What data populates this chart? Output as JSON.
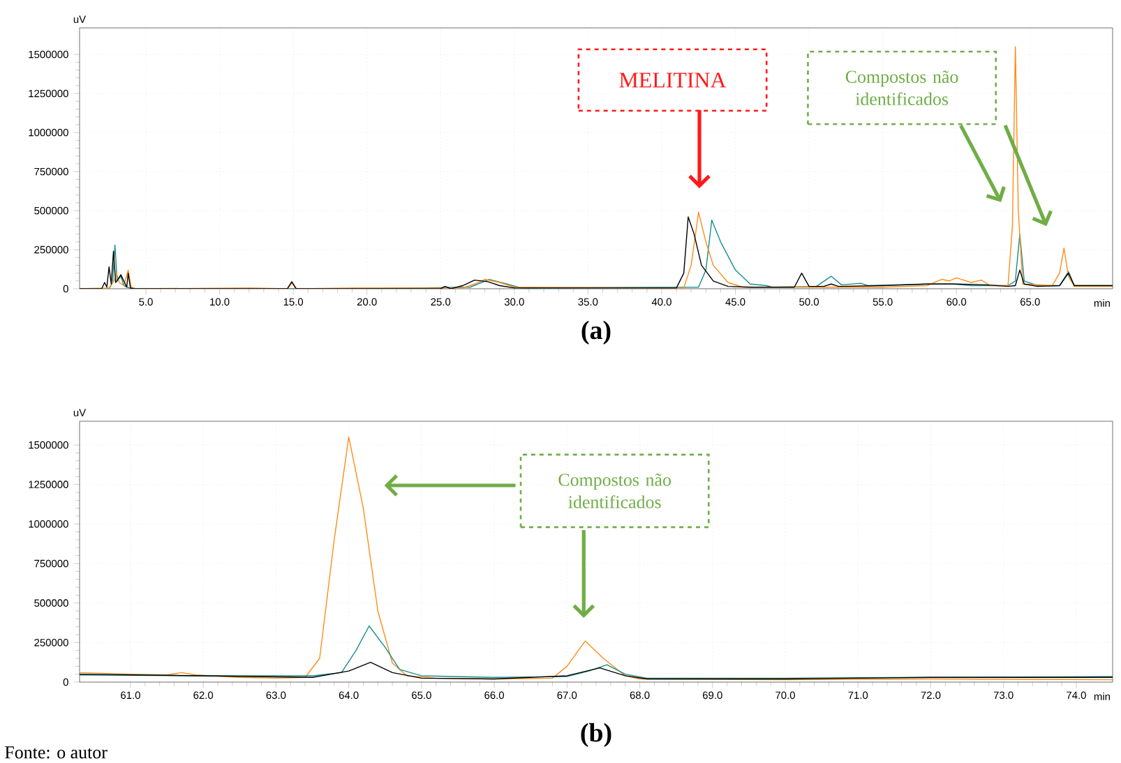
{
  "chart_data": [
    {
      "type": "line",
      "title": "(a)",
      "xlabel": "min",
      "ylabel": "uV",
      "grid": true,
      "xlim": [
        0.5,
        70.6
      ],
      "ylim": [
        0,
        1670000
      ],
      "xticks": [
        {
          "value": 5,
          "label": "5.0"
        },
        {
          "value": 10,
          "label": "10.0"
        },
        {
          "value": 15,
          "label": "15.0"
        },
        {
          "value": 20,
          "label": "20.0"
        },
        {
          "value": 25,
          "label": "25.0"
        },
        {
          "value": 30,
          "label": "30.0"
        },
        {
          "value": 35,
          "label": "35.0"
        },
        {
          "value": 40,
          "label": "40.0"
        },
        {
          "value": 45,
          "label": "45.0"
        },
        {
          "value": 50,
          "label": "50.0"
        },
        {
          "value": 55,
          "label": "55.0"
        },
        {
          "value": 60,
          "label": "60.0"
        },
        {
          "value": 65,
          "label": "65.0"
        }
      ],
      "yticks": [
        0,
        250000,
        500000,
        750000,
        1000000,
        1250000,
        1500000
      ],
      "annotations": [
        "MELITINA",
        "Compostos não identificados"
      ],
      "series": [
        {
          "color": "#1a8c8c",
          "x": [
            0.5,
            2.5,
            2.75,
            2.9,
            3.05,
            3.3,
            3.5,
            4.0,
            20,
            27.0,
            28.3,
            29.5,
            30.5,
            42.5,
            43.0,
            43.4,
            44.0,
            45.0,
            46.0,
            47.1,
            47.5,
            50.5,
            51.5,
            52.2,
            53.5,
            54.0,
            58.0,
            59.8,
            61.0,
            63.5,
            64.0,
            64.3,
            64.6,
            65.5,
            67.0,
            67.6,
            68.0,
            70.6
          ],
          "values": [
            0,
            0,
            40000,
            280000,
            50000,
            80000,
            20000,
            0,
            0,
            10000,
            60000,
            30000,
            5000,
            10000,
            120000,
            440000,
            300000,
            120000,
            30000,
            20000,
            10000,
            15000,
            80000,
            25000,
            35000,
            20000,
            30000,
            30000,
            20000,
            20000,
            50000,
            350000,
            50000,
            20000,
            20000,
            110000,
            20000,
            20000
          ]
        },
        {
          "color": "#ff8c1a",
          "x": [
            0.5,
            2.5,
            2.9,
            3.0,
            3.2,
            3.5,
            3.8,
            4.0,
            4.3,
            12,
            14.6,
            14.9,
            15.2,
            20,
            26.5,
            27.3,
            28.0,
            29.0,
            30.0,
            41.5,
            42.0,
            42.5,
            43.0,
            43.5,
            44.5,
            45.5,
            50,
            55,
            58.0,
            59.0,
            59.5,
            60.0,
            61.0,
            61.7,
            62.3,
            63.5,
            63.8,
            64.0,
            64.2,
            64.5,
            66.5,
            67.0,
            67.3,
            67.6,
            68.0,
            70.6
          ],
          "values": [
            0,
            5000,
            60000,
            100000,
            40000,
            20000,
            120000,
            10000,
            0,
            5000,
            0,
            35000,
            0,
            5000,
            5000,
            30000,
            60000,
            40000,
            10000,
            5000,
            150000,
            490000,
            300000,
            150000,
            40000,
            10000,
            10000,
            10000,
            20000,
            60000,
            50000,
            70000,
            40000,
            55000,
            20000,
            20000,
            400000,
            1550000,
            500000,
            30000,
            20000,
            100000,
            260000,
            80000,
            15000,
            15000
          ]
        },
        {
          "color": "#000000",
          "x": [
            0.5,
            2.0,
            2.2,
            2.35,
            2.5,
            2.65,
            2.8,
            2.95,
            3.1,
            3.3,
            3.5,
            3.7,
            3.8,
            3.95,
            4.2,
            14.6,
            14.9,
            15.2,
            25.0,
            25.3,
            25.7,
            26.5,
            27.3,
            28.2,
            29.0,
            30.0,
            41.0,
            41.5,
            41.8,
            42.2,
            42.7,
            43.5,
            44.5,
            46,
            49.0,
            49.5,
            50.0,
            51.0,
            51.5,
            52.0,
            55.0,
            58.0,
            60.0,
            62.0,
            63.5,
            64.0,
            64.3,
            64.6,
            65.5,
            67.0,
            67.6,
            68.0,
            70.6
          ],
          "values": [
            0,
            0,
            40000,
            10000,
            140000,
            30000,
            240000,
            40000,
            60000,
            90000,
            50000,
            10000,
            100000,
            5000,
            0,
            0,
            45000,
            0,
            0,
            15000,
            0,
            20000,
            55000,
            45000,
            20000,
            5000,
            5000,
            100000,
            460000,
            350000,
            150000,
            50000,
            15000,
            10000,
            10000,
            100000,
            15000,
            15000,
            30000,
            15000,
            20000,
            30000,
            30000,
            25000,
            15000,
            20000,
            120000,
            30000,
            15000,
            20000,
            100000,
            20000,
            20000
          ]
        }
      ]
    },
    {
      "type": "line",
      "title": "(b)",
      "xlabel": "min",
      "ylabel": "uV",
      "grid": true,
      "xlim": [
        60.3,
        74.5
      ],
      "ylim": [
        0,
        1650000
      ],
      "xticks": [
        {
          "value": 61,
          "label": "61.0"
        },
        {
          "value": 62,
          "label": "62.0"
        },
        {
          "value": 63,
          "label": "63.0"
        },
        {
          "value": 64,
          "label": "64.0"
        },
        {
          "value": 65,
          "label": "65.0"
        },
        {
          "value": 66,
          "label": "66.0"
        },
        {
          "value": 67,
          "label": "67.0"
        },
        {
          "value": 68,
          "label": "68.0"
        },
        {
          "value": 69,
          "label": "69.0"
        },
        {
          "value": 70,
          "label": "70.0"
        },
        {
          "value": 71,
          "label": "71.0"
        },
        {
          "value": 72,
          "label": "72.0"
        },
        {
          "value": 73,
          "label": "73.0"
        },
        {
          "value": 74,
          "label": "74.0"
        }
      ],
      "yticks": [
        0,
        250000,
        500000,
        750000,
        1000000,
        1250000,
        1500000
      ],
      "annotations": [
        "Compostos não identificados",
        "Fonte: o autor"
      ],
      "series": [
        {
          "color": "#ff8c1a",
          "x": [
            60.3,
            61.0,
            61.5,
            61.7,
            61.9,
            62.5,
            63.0,
            63.4,
            63.6,
            63.8,
            64.0,
            64.2,
            64.4,
            64.6,
            64.8,
            65.2,
            66.0,
            66.8,
            67.0,
            67.25,
            67.5,
            67.8,
            68.0,
            70.0,
            72.0,
            74.5
          ],
          "values": [
            60000,
            50000,
            45000,
            60000,
            45000,
            30000,
            25000,
            30000,
            150000,
            900000,
            1550000,
            1100000,
            450000,
            120000,
            40000,
            25000,
            20000,
            25000,
            100000,
            260000,
            150000,
            40000,
            20000,
            15000,
            20000,
            15000
          ]
        },
        {
          "color": "#1a8c8c",
          "x": [
            60.3,
            62.0,
            63.5,
            63.9,
            64.1,
            64.28,
            64.5,
            64.7,
            65.0,
            66.0,
            67.0,
            67.3,
            67.55,
            67.8,
            68.1,
            70.0,
            72.0,
            74.5
          ],
          "values": [
            45000,
            40000,
            40000,
            60000,
            200000,
            355000,
            220000,
            80000,
            40000,
            30000,
            35000,
            70000,
            110000,
            50000,
            25000,
            25000,
            30000,
            35000
          ]
        },
        {
          "color": "#000000",
          "x": [
            60.3,
            62.0,
            63.5,
            64.0,
            64.3,
            64.6,
            65.0,
            66.0,
            67.0,
            67.45,
            67.8,
            68.1,
            70.0,
            72.0,
            74.5
          ],
          "values": [
            50000,
            40000,
            30000,
            70000,
            125000,
            60000,
            25000,
            20000,
            40000,
            90000,
            40000,
            20000,
            20000,
            30000,
            30000
          ]
        }
      ]
    }
  ]
}
